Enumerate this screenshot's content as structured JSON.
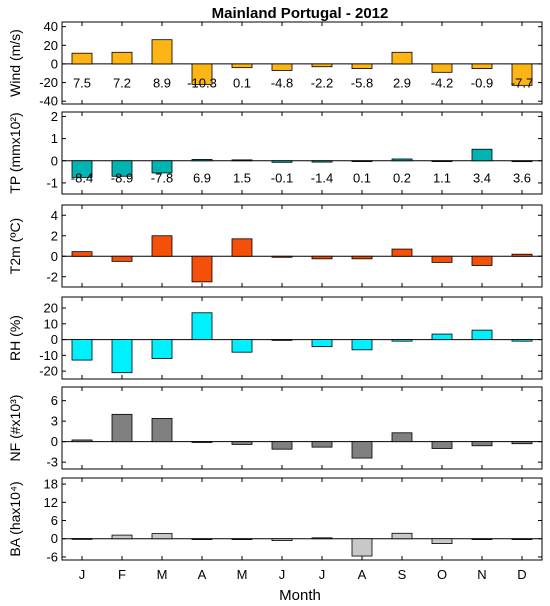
{
  "title": "Mainland Portugal - 2012",
  "xlabel": "Month",
  "chart_data": {
    "type": "bar",
    "categories": [
      "J",
      "F",
      "M",
      "A",
      "M",
      "J",
      "J",
      "A",
      "S",
      "O",
      "N",
      "D"
    ],
    "panels": [
      {
        "ylabel": "Wind (m/s)",
        "color": "#FDB515",
        "ylim": [
          -43,
          45
        ],
        "yticks": [
          -40,
          -20,
          0,
          20,
          40
        ],
        "values": [
          11.5,
          12.5,
          26,
          -22,
          -4,
          -7,
          -3,
          -5,
          12.5,
          -9,
          -5,
          -23
        ],
        "labels": [
          "7.5",
          "7.2",
          "8.9",
          "-10.3",
          "0.1",
          "-4.8",
          "-2.2",
          "-5.8",
          "2.9",
          "-4.2",
          "-0.9",
          "-7.7"
        ]
      },
      {
        "ylabel": "TP (mmx10²)",
        "color": "#00B4B4",
        "ylim": [
          -1.5,
          2.2
        ],
        "yticks": [
          -1,
          0,
          1,
          2
        ],
        "values": [
          -0.75,
          -0.7,
          -0.55,
          0.06,
          0.04,
          -0.07,
          -0.06,
          -0.03,
          0.08,
          -0.02,
          0.52,
          -0.04
        ],
        "labels": [
          "-8.4",
          "-8.9",
          "-7.8",
          "6.9",
          "1.5",
          "-0.1",
          "-1.4",
          "0.1",
          "0.2",
          "1.1",
          "3.4",
          "3.6"
        ]
      },
      {
        "ylabel": "T2m (ºC)",
        "color": "#F5500A",
        "ylim": [
          -3,
          5
        ],
        "yticks": [
          -2,
          0,
          2,
          4
        ],
        "values": [
          0.45,
          -0.5,
          2.0,
          -2.5,
          1.7,
          -0.1,
          -0.25,
          -0.25,
          0.7,
          -0.6,
          -0.9,
          0.2
        ],
        "labels": []
      },
      {
        "ylabel": "RH (%)",
        "color": "#00F0FF",
        "ylim": [
          -25,
          27
        ],
        "yticks": [
          -20,
          -10,
          0,
          10,
          20
        ],
        "values": [
          -13,
          -21,
          -12,
          17,
          -8,
          -0.5,
          -4.5,
          -6.5,
          -1,
          3.5,
          6,
          -1
        ],
        "labels": []
      },
      {
        "ylabel": "NF (#x10³)",
        "color": "#808080",
        "ylim": [
          -4,
          8
        ],
        "yticks": [
          -3,
          0,
          3,
          6
        ],
        "values": [
          0.25,
          4.0,
          3.4,
          -0.1,
          -0.4,
          -1.1,
          -0.8,
          -2.4,
          1.3,
          -1.0,
          -0.6,
          -0.3
        ],
        "labels": []
      },
      {
        "ylabel": "BA (hax10⁴)",
        "color": "#C8C8C8",
        "ylim": [
          -7,
          20
        ],
        "yticks": [
          -6,
          0,
          6,
          12,
          18
        ],
        "values": [
          0.05,
          1.2,
          1.7,
          -0.15,
          -0.05,
          -0.6,
          0.3,
          -5.7,
          1.8,
          -1.6,
          -0.1,
          -0.1
        ],
        "labels": []
      }
    ]
  }
}
